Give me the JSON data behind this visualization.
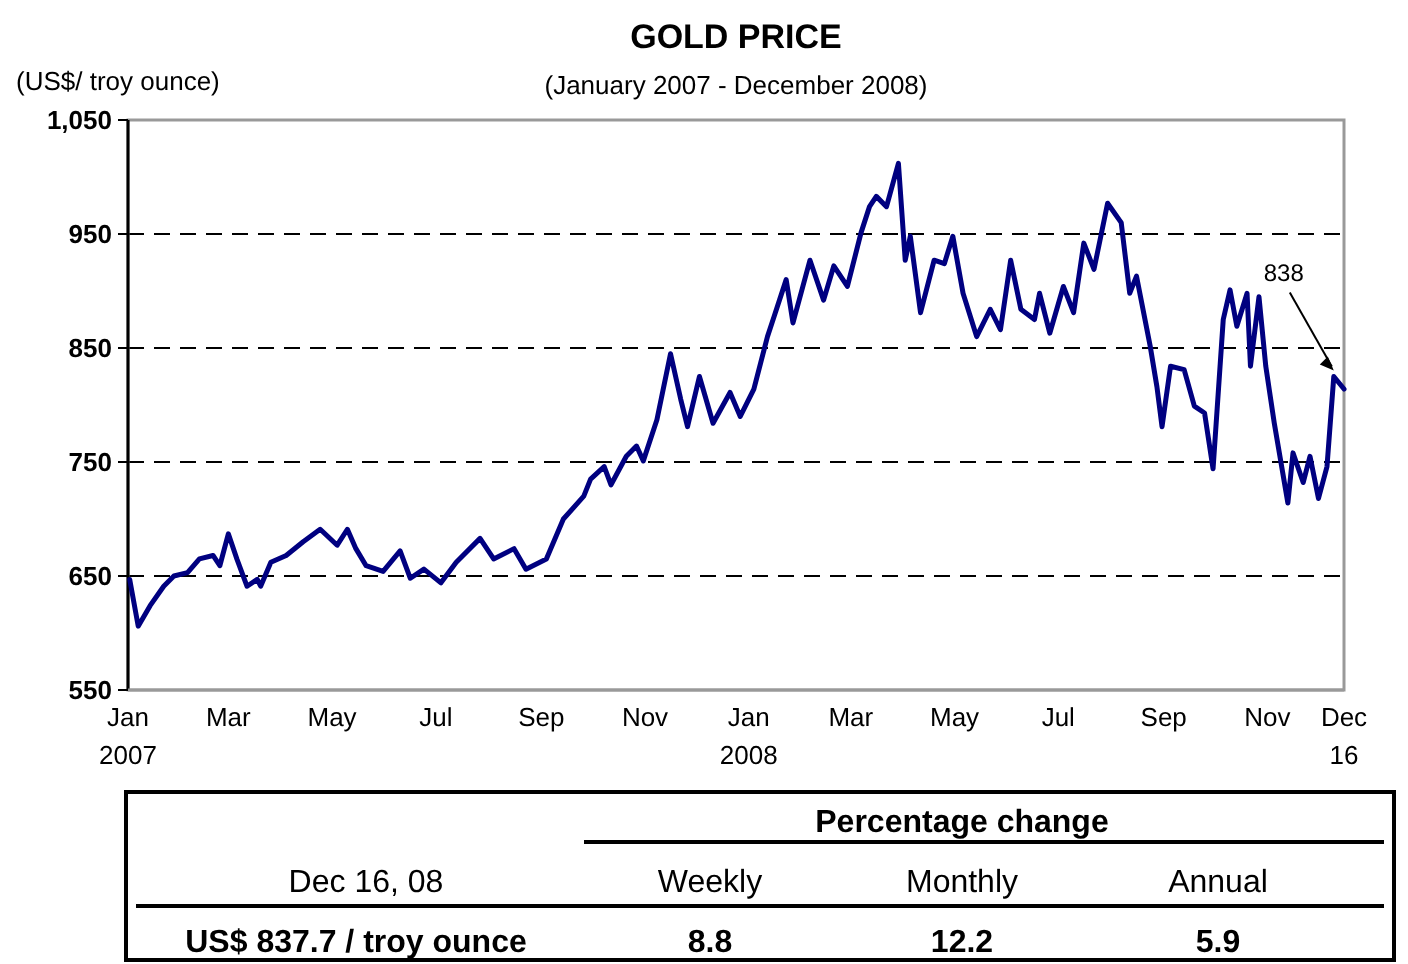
{
  "chart_data": {
    "type": "line",
    "title": "GOLD PRICE",
    "subtitle": "(January 2007 - December 2008)",
    "ylabel": "(US$/ troy ounce)",
    "x": [
      "2007-01-02",
      "2007-01-07",
      "2007-01-14",
      "2007-01-22",
      "2007-01-28",
      "2007-02-05",
      "2007-02-12",
      "2007-02-20",
      "2007-02-24",
      "2007-03-01",
      "2007-03-06",
      "2007-03-12",
      "2007-03-18",
      "2007-03-20",
      "2007-03-26",
      "2007-04-04",
      "2007-04-14",
      "2007-04-24",
      "2007-05-04",
      "2007-05-10",
      "2007-05-15",
      "2007-05-21",
      "2007-05-31",
      "2007-06-10",
      "2007-06-16",
      "2007-06-24",
      "2007-07-04",
      "2007-07-13",
      "2007-07-27",
      "2007-08-04",
      "2007-08-16",
      "2007-08-23",
      "2007-09-04",
      "2007-09-14",
      "2007-09-26",
      "2007-09-30",
      "2007-10-08",
      "2007-10-12",
      "2007-10-21",
      "2007-10-27",
      "2007-10-31",
      "2007-11-08",
      "2007-11-16",
      "2007-11-22",
      "2007-11-26",
      "2007-12-03",
      "2007-12-11",
      "2007-12-21",
      "2007-12-27",
      "2008-01-04",
      "2008-01-08",
      "2008-01-12",
      "2008-01-16",
      "2008-01-23",
      "2008-01-27",
      "2008-02-06",
      "2008-02-14",
      "2008-02-20",
      "2008-02-28",
      "2008-03-07",
      "2008-03-12",
      "2008-03-16",
      "2008-03-22",
      "2008-03-29",
      "2008-04-02",
      "2008-04-05",
      "2008-04-11",
      "2008-04-19",
      "2008-04-25",
      "2008-04-30",
      "2008-05-06",
      "2008-05-14",
      "2008-05-22",
      "2008-05-28",
      "2008-06-03",
      "2008-06-09",
      "2008-06-17",
      "2008-06-20",
      "2008-06-26",
      "2008-07-04",
      "2008-07-10",
      "2008-07-16",
      "2008-07-22",
      "2008-07-30",
      "2008-08-07",
      "2008-08-12",
      "2008-08-16",
      "2008-08-24",
      "2008-08-28",
      "2008-08-31",
      "2008-09-05",
      "2008-09-13",
      "2008-09-19",
      "2008-09-25",
      "2008-09-30",
      "2008-10-06",
      "2008-10-10",
      "2008-10-14",
      "2008-10-20",
      "2008-10-22",
      "2008-10-27",
      "2008-10-31",
      "2008-11-05",
      "2008-11-13",
      "2008-11-16",
      "2008-11-22",
      "2008-11-26",
      "2008-12-01",
      "2008-12-06",
      "2008-12-10",
      "2008-12-16"
    ],
    "series": [
      {
        "color": "#000080",
        "values": [
          647,
          606,
          624,
          641,
          650,
          653,
          665,
          668,
          659,
          687,
          665,
          641,
          647,
          641,
          662,
          668,
          680,
          691,
          677,
          691,
          674,
          659,
          654,
          672,
          648,
          656,
          644,
          662,
          683,
          665,
          674,
          656,
          665,
          700,
          720,
          735,
          746,
          730,
          755,
          764,
          751,
          787,
          845,
          805,
          781,
          825,
          784,
          811,
          790,
          814,
          837,
          860,
          878,
          910,
          872,
          927,
          892,
          922,
          904,
          951,
          974,
          983,
          974,
          1012,
          927,
          948,
          881,
          927,
          924,
          948,
          898,
          860,
          884,
          866,
          927,
          884,
          875,
          898,
          863,
          904,
          881,
          942,
          919,
          977,
          960,
          898,
          913,
          852,
          816,
          781,
          834,
          831,
          799,
          793,
          744,
          875,
          901,
          869,
          898,
          834,
          895,
          834,
          784,
          714,
          758,
          732,
          755,
          718,
          746,
          825,
          814
        ]
      }
    ],
    "xlim": [
      "2007-01-01",
      "2008-12-16"
    ],
    "xticks": [
      {
        "value": "2007-01-01",
        "label": "Jan\n2007"
      },
      {
        "value": "2007-03-01",
        "label": "Mar"
      },
      {
        "value": "2007-05-01",
        "label": "May"
      },
      {
        "value": "2007-07-01",
        "label": "Jul"
      },
      {
        "value": "2007-09-01",
        "label": "Sep"
      },
      {
        "value": "2007-11-01",
        "label": "Nov"
      },
      {
        "value": "2008-01-01",
        "label": "Jan\n2008"
      },
      {
        "value": "2008-03-01",
        "label": "Mar"
      },
      {
        "value": "2008-05-01",
        "label": "May"
      },
      {
        "value": "2008-07-01",
        "label": "Jul"
      },
      {
        "value": "2008-09-01",
        "label": "Sep"
      },
      {
        "value": "2008-11-01",
        "label": "Nov"
      },
      {
        "value": "2008-12-16",
        "label": "Dec\n16"
      }
    ],
    "ylim": [
      550,
      1050
    ],
    "yticks": [
      550,
      650,
      750,
      850,
      950,
      {
        "value": 1050,
        "label": "1,050"
      }
    ],
    "grid": "y",
    "line_style": "solid",
    "marker": "none",
    "annotations": [
      "838",
      "Percentage change",
      "Dec 16, 08",
      "Weekly",
      "Monthly",
      "Annual",
      "US$ 837.7 / troy ounce",
      "8.8",
      "12.2",
      "5.9"
    ]
  }
}
